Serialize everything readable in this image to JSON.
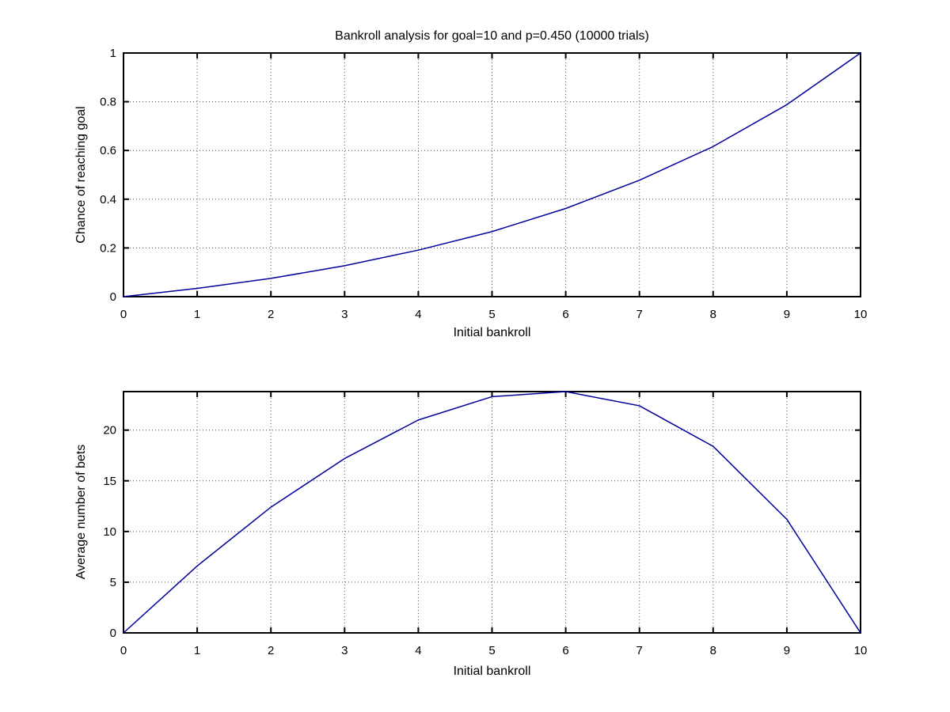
{
  "figure": {
    "background": "#ffffff",
    "axis_color": "#000000",
    "grid_color": "#3c3c3c",
    "tick_label_color": "#000000"
  },
  "chart_data": [
    {
      "type": "line",
      "title": "Bankroll analysis for goal=10 and p=0.450 (10000 trials)",
      "xlabel": "Initial bankroll",
      "ylabel": "Chance of reaching goal",
      "line_color": "#00009c",
      "grid": true,
      "legend": "none",
      "x": [
        0,
        1,
        2,
        3,
        4,
        5,
        6,
        7,
        8,
        9,
        10
      ],
      "y": [
        0,
        0.034,
        0.075,
        0.127,
        0.191,
        0.267,
        0.362,
        0.478,
        0.616,
        0.788,
        1.0
      ],
      "xlim": [
        0,
        10
      ],
      "ylim": [
        0,
        1
      ],
      "xticks": [
        0,
        1,
        2,
        3,
        4,
        5,
        6,
        7,
        8,
        9,
        10
      ],
      "xtick_labels": [
        "0",
        "1",
        "2",
        "3",
        "4",
        "5",
        "6",
        "7",
        "8",
        "9",
        "10"
      ],
      "yticks": [
        0,
        0.2,
        0.4,
        0.6,
        0.8,
        1
      ],
      "ytick_labels": [
        "0",
        "0.2",
        "0.4",
        "0.6",
        "0.8",
        "1"
      ]
    },
    {
      "type": "line",
      "title": "",
      "xlabel": "Initial bankroll",
      "ylabel": "Average number of bets",
      "line_color": "#00009c",
      "grid": true,
      "legend": "none",
      "x": [
        0,
        1,
        2,
        3,
        4,
        5,
        6,
        7,
        8,
        9,
        10
      ],
      "y": [
        0,
        6.6,
        12.4,
        17.2,
        21.0,
        23.3,
        23.8,
        22.4,
        18.4,
        11.2,
        0
      ],
      "xlim": [
        0,
        10
      ],
      "ylim": [
        0,
        23.8
      ],
      "xticks": [
        0,
        1,
        2,
        3,
        4,
        5,
        6,
        7,
        8,
        9,
        10
      ],
      "xtick_labels": [
        "0",
        "1",
        "2",
        "3",
        "4",
        "5",
        "6",
        "7",
        "8",
        "9",
        "10"
      ],
      "yticks": [
        0,
        5,
        10,
        15,
        20
      ],
      "ytick_labels": [
        "0",
        "5",
        "10",
        "15",
        "20"
      ]
    }
  ]
}
